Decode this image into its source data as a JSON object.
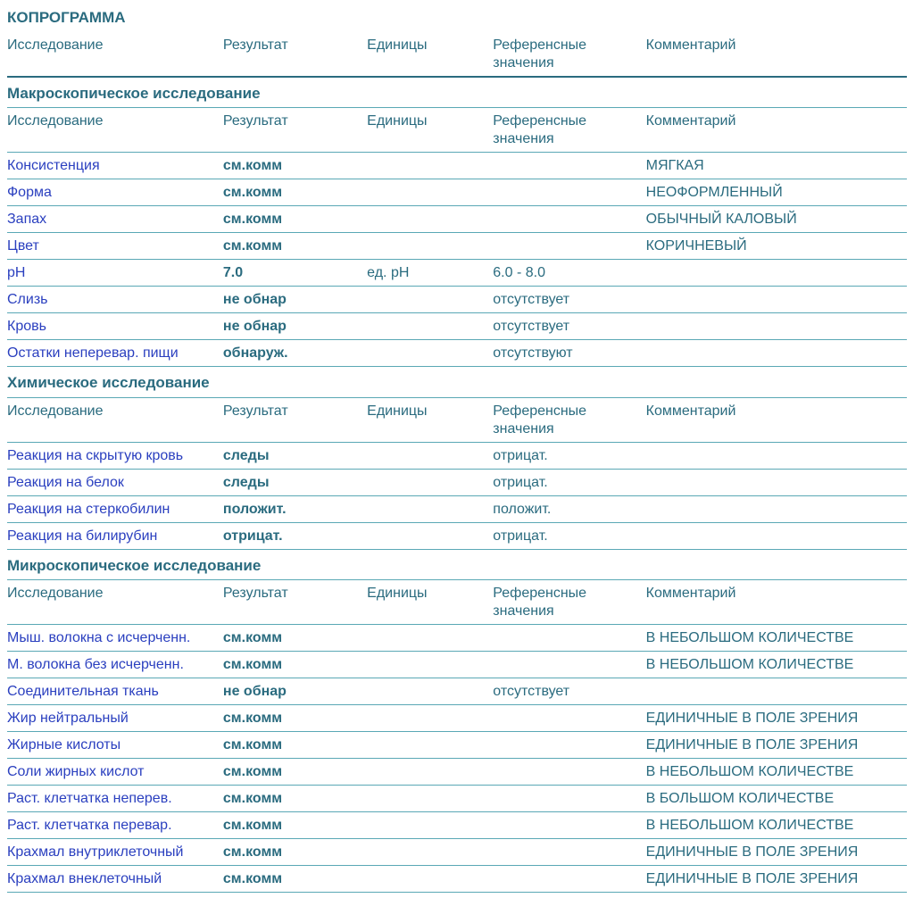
{
  "colors": {
    "teal": "#2a6b7f",
    "border": "#5aa8b5",
    "blue_link": "#2a3fbf",
    "background": "#ffffff"
  },
  "typography": {
    "body_fontsize": 16,
    "title_fontsize": 17,
    "font_family": "Arial"
  },
  "layout": {
    "column_widths_pct": [
      24,
      16,
      14,
      17,
      29
    ]
  },
  "title": "КОПРОГРАММА",
  "headers": {
    "study": "Исследование",
    "result": "Результат",
    "units": "Единицы",
    "ref": "Референсные значения",
    "comment": "Комментарий"
  },
  "sections": [
    {
      "title": "Макроскопическое исследование",
      "rows": [
        {
          "name": "Консистенция",
          "result": "см.комм",
          "units": "",
          "ref": "",
          "comment": "МЯГКАЯ"
        },
        {
          "name": "Форма",
          "result": "см.комм",
          "units": "",
          "ref": "",
          "comment": "НЕОФОРМЛЕННЫЙ"
        },
        {
          "name": "Запах",
          "result": "см.комм",
          "units": "",
          "ref": "",
          "comment": "ОБЫЧНЫЙ КАЛОВЫЙ"
        },
        {
          "name": "Цвет",
          "result": "см.комм",
          "units": "",
          "ref": "",
          "comment": "КОРИЧНЕВЫЙ"
        },
        {
          "name": "pH",
          "result": "7.0",
          "units": "ед. pH",
          "ref": "6.0 - 8.0",
          "comment": ""
        },
        {
          "name": "Слизь",
          "result": "не обнар",
          "units": "",
          "ref": "отсутствует",
          "comment": ""
        },
        {
          "name": "Кровь",
          "result": "не обнар",
          "units": "",
          "ref": "отсутствует",
          "comment": ""
        },
        {
          "name": "Остатки неперевар. пищи",
          "result": "обнаруж.",
          "units": "",
          "ref": "отсутствуют",
          "comment": ""
        }
      ]
    },
    {
      "title": "Химическое исследование",
      "rows": [
        {
          "name": "Реакция на скрытую кровь",
          "result": "следы",
          "units": "",
          "ref": "отрицат.",
          "comment": ""
        },
        {
          "name": "Реакция на белок",
          "result": "следы",
          "units": "",
          "ref": "отрицат.",
          "comment": ""
        },
        {
          "name": "Реакция на стеркобилин",
          "result": "положит.",
          "units": "",
          "ref": "положит.",
          "comment": ""
        },
        {
          "name": "Реакция на билирубин",
          "result": "отрицат.",
          "units": "",
          "ref": "отрицат.",
          "comment": ""
        }
      ]
    },
    {
      "title": "Микроскопическое исследование",
      "rows": [
        {
          "name": "Мыш. волокна с исчерченн.",
          "result": "см.комм",
          "units": "",
          "ref": "",
          "comment": "В НЕБОЛЬШОМ КОЛИЧЕСТВЕ"
        },
        {
          "name": "М. волокна без исчерченн.",
          "result": "см.комм",
          "units": "",
          "ref": "",
          "comment": "В НЕБОЛЬШОМ КОЛИЧЕСТВЕ"
        },
        {
          "name": "Соединительная ткань",
          "result": "не обнар",
          "units": "",
          "ref": "отсутствует",
          "comment": ""
        },
        {
          "name": "Жир нейтральный",
          "result": "см.комм",
          "units": "",
          "ref": "",
          "comment": "ЕДИНИЧНЫЕ В ПОЛЕ ЗРЕНИЯ"
        },
        {
          "name": "Жирные кислоты",
          "result": "см.комм",
          "units": "",
          "ref": "",
          "comment": "ЕДИНИЧНЫЕ В ПОЛЕ ЗРЕНИЯ"
        },
        {
          "name": "Соли жирных кислот",
          "result": "см.комм",
          "units": "",
          "ref": "",
          "comment": "В НЕБОЛЬШОМ КОЛИЧЕСТВЕ"
        },
        {
          "name": "Раст. клетчатка неперев.",
          "result": "см.комм",
          "units": "",
          "ref": "",
          "comment": "В БОЛЬШОМ КОЛИЧЕСТВЕ"
        },
        {
          "name": "Раст. клетчатка перевар.",
          "result": "см.комм",
          "units": "",
          "ref": "",
          "comment": "В НЕБОЛЬШОМ КОЛИЧЕСТВЕ"
        },
        {
          "name": "Крахмал внутриклеточный",
          "result": "см.комм",
          "units": "",
          "ref": "",
          "comment": "ЕДИНИЧНЫЕ В ПОЛЕ ЗРЕНИЯ"
        },
        {
          "name": "Крахмал внеклеточный",
          "result": "см.комм",
          "units": "",
          "ref": "",
          "comment": "ЕДИНИЧНЫЕ В ПОЛЕ ЗРЕНИЯ"
        }
      ]
    }
  ]
}
